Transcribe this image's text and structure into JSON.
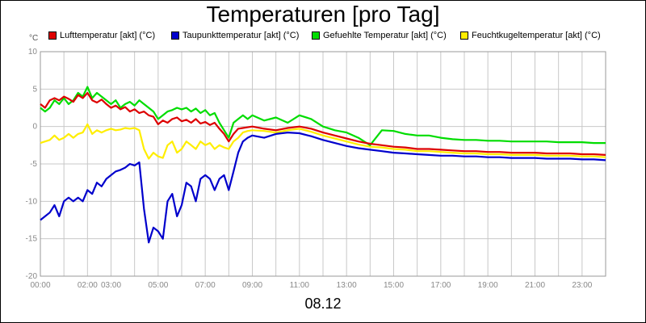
{
  "chart_data": {
    "type": "line",
    "title": "Temperaturen [pro Tag]",
    "xlabel": "08.12",
    "ylabel": "°C",
    "ylim": [
      -20,
      10
    ],
    "xlim": [
      0,
      24
    ],
    "yticks": [
      10,
      5,
      0,
      -5,
      -10,
      -15,
      -20
    ],
    "ytick_labels": [
      "10",
      "5",
      "0",
      "-5",
      "-10",
      "-15",
      "-20"
    ],
    "xticks": [
      0,
      2,
      3,
      5,
      7,
      9,
      11,
      13,
      15,
      17,
      19,
      21,
      23
    ],
    "xtick_labels": [
      "00:00",
      "02:00",
      "03:00",
      "05:00",
      "07:00",
      "09:00",
      "11:00",
      "13:00",
      "15:00",
      "17:00",
      "19:00",
      "21:00",
      "23:00"
    ],
    "grid": true,
    "legend_position": "top",
    "series": [
      {
        "name": "Lufttemperatur [akt] (°C)",
        "color": "#dd0000",
        "x": [
          0,
          0.2,
          0.4,
          0.6,
          0.8,
          1.0,
          1.2,
          1.4,
          1.6,
          1.8,
          2.0,
          2.2,
          2.4,
          2.6,
          2.8,
          3.0,
          3.2,
          3.4,
          3.6,
          3.8,
          4.0,
          4.2,
          4.4,
          4.6,
          4.8,
          5.0,
          5.2,
          5.4,
          5.6,
          5.8,
          6.0,
          6.2,
          6.4,
          6.6,
          6.8,
          7.0,
          7.2,
          7.4,
          7.6,
          7.8,
          8.0,
          8.2,
          8.4,
          8.6,
          8.8,
          9.0,
          9.5,
          10.0,
          10.5,
          11.0,
          11.5,
          12.0,
          12.5,
          13.0,
          13.5,
          14.0,
          14.5,
          15.0,
          15.5,
          16.0,
          16.5,
          17.0,
          17.5,
          18.0,
          18.5,
          19.0,
          19.5,
          20.0,
          20.5,
          21.0,
          21.5,
          22.0,
          22.5,
          23.0,
          23.5,
          24.0
        ],
        "values": [
          3.0,
          2.5,
          3.5,
          3.8,
          3.5,
          4.0,
          3.7,
          3.3,
          4.2,
          3.8,
          4.5,
          3.5,
          3.2,
          3.6,
          3.0,
          2.5,
          2.8,
          2.3,
          2.6,
          2.0,
          2.3,
          1.8,
          2.0,
          1.5,
          1.3,
          0.3,
          0.8,
          0.5,
          1.0,
          1.2,
          0.7,
          0.9,
          0.5,
          1.0,
          0.4,
          0.6,
          0.2,
          0.5,
          -0.3,
          -1.0,
          -2.0,
          -1.0,
          -0.3,
          -0.2,
          -0.1,
          0.0,
          -0.3,
          -0.5,
          -0.2,
          0.0,
          -0.3,
          -0.8,
          -1.2,
          -1.6,
          -2.0,
          -2.3,
          -2.5,
          -2.7,
          -2.8,
          -3.0,
          -3.0,
          -3.1,
          -3.2,
          -3.3,
          -3.3,
          -3.4,
          -3.4,
          -3.5,
          -3.5,
          -3.5,
          -3.6,
          -3.6,
          -3.6,
          -3.7,
          -3.7,
          -3.8
        ]
      },
      {
        "name": "Taupunkttemperatur [akt] (°C)",
        "color": "#0000cc",
        "x": [
          0,
          0.2,
          0.4,
          0.6,
          0.8,
          1.0,
          1.2,
          1.4,
          1.6,
          1.8,
          2.0,
          2.2,
          2.4,
          2.6,
          2.8,
          3.0,
          3.2,
          3.4,
          3.6,
          3.8,
          4.0,
          4.2,
          4.4,
          4.6,
          4.8,
          5.0,
          5.2,
          5.4,
          5.6,
          5.8,
          6.0,
          6.2,
          6.4,
          6.6,
          6.8,
          7.0,
          7.2,
          7.4,
          7.6,
          7.8,
          8.0,
          8.2,
          8.4,
          8.6,
          8.8,
          9.0,
          9.5,
          10.0,
          10.5,
          11.0,
          11.5,
          12.0,
          12.5,
          13.0,
          13.5,
          14.0,
          14.5,
          15.0,
          15.5,
          16.0,
          16.5,
          17.0,
          17.5,
          18.0,
          18.5,
          19.0,
          19.5,
          20.0,
          20.5,
          21.0,
          21.5,
          22.0,
          22.5,
          23.0,
          23.5,
          24.0
        ],
        "values": [
          -12.5,
          -12.0,
          -11.5,
          -10.5,
          -12.0,
          -10.0,
          -9.5,
          -10.0,
          -9.5,
          -10.0,
          -8.5,
          -9.0,
          -7.5,
          -8.0,
          -7.0,
          -6.5,
          -6.0,
          -5.8,
          -5.5,
          -5.0,
          -5.2,
          -4.8,
          -11.0,
          -15.5,
          -13.5,
          -14.0,
          -15.0,
          -10.0,
          -9.0,
          -12.0,
          -10.5,
          -7.5,
          -8.0,
          -10.0,
          -7.0,
          -6.5,
          -7.0,
          -8.5,
          -7.0,
          -6.5,
          -8.5,
          -6.0,
          -3.5,
          -2.0,
          -1.5,
          -1.2,
          -1.5,
          -1.0,
          -0.8,
          -0.9,
          -1.3,
          -1.8,
          -2.2,
          -2.6,
          -2.9,
          -3.1,
          -3.3,
          -3.5,
          -3.6,
          -3.7,
          -3.8,
          -3.9,
          -3.9,
          -4.0,
          -4.0,
          -4.1,
          -4.1,
          -4.2,
          -4.2,
          -4.2,
          -4.3,
          -4.3,
          -4.3,
          -4.4,
          -4.4,
          -4.5
        ]
      },
      {
        "name": "Gefuehlte Temperatur [akt] (°C)",
        "color": "#00dd00",
        "x": [
          0,
          0.2,
          0.4,
          0.6,
          0.8,
          1.0,
          1.2,
          1.4,
          1.6,
          1.8,
          2.0,
          2.2,
          2.4,
          2.6,
          2.8,
          3.0,
          3.2,
          3.4,
          3.6,
          3.8,
          4.0,
          4.2,
          4.4,
          4.6,
          4.8,
          5.0,
          5.2,
          5.4,
          5.6,
          5.8,
          6.0,
          6.2,
          6.4,
          6.6,
          6.8,
          7.0,
          7.2,
          7.4,
          7.6,
          7.8,
          8.0,
          8.2,
          8.4,
          8.6,
          8.8,
          9.0,
          9.5,
          10.0,
          10.5,
          11.0,
          11.5,
          12.0,
          12.5,
          13.0,
          13.5,
          14.0,
          14.5,
          15.0,
          15.5,
          16.0,
          16.5,
          17.0,
          17.5,
          18.0,
          18.5,
          19.0,
          19.5,
          20.0,
          20.5,
          21.0,
          21.5,
          22.0,
          22.5,
          23.0,
          23.5,
          24.0
        ],
        "values": [
          2.5,
          2.0,
          2.5,
          3.5,
          3.0,
          3.8,
          3.0,
          3.5,
          4.5,
          4.0,
          5.3,
          3.8,
          4.5,
          4.0,
          3.5,
          3.0,
          3.5,
          2.5,
          3.0,
          3.3,
          2.8,
          3.5,
          3.0,
          2.5,
          2.0,
          1.0,
          1.5,
          2.0,
          2.2,
          2.5,
          2.3,
          2.5,
          2.0,
          2.4,
          1.8,
          2.2,
          1.5,
          1.8,
          0.5,
          -0.5,
          -1.5,
          0.5,
          1.0,
          1.5,
          1.0,
          1.5,
          0.8,
          1.2,
          0.5,
          1.5,
          1.0,
          0.0,
          -0.5,
          -0.8,
          -1.5,
          -2.5,
          -0.5,
          -0.6,
          -1.0,
          -1.2,
          -1.2,
          -1.5,
          -1.7,
          -1.8,
          -1.8,
          -1.9,
          -1.9,
          -2.0,
          -2.0,
          -2.0,
          -2.0,
          -2.1,
          -2.1,
          -2.1,
          -2.2,
          -2.2
        ]
      },
      {
        "name": "Feuchtkugeltemperatur [akt] (°C)",
        "color": "#ffee00",
        "x": [
          0,
          0.2,
          0.4,
          0.6,
          0.8,
          1.0,
          1.2,
          1.4,
          1.6,
          1.8,
          2.0,
          2.2,
          2.4,
          2.6,
          2.8,
          3.0,
          3.2,
          3.4,
          3.6,
          3.8,
          4.0,
          4.2,
          4.4,
          4.6,
          4.8,
          5.0,
          5.2,
          5.4,
          5.6,
          5.8,
          6.0,
          6.2,
          6.4,
          6.6,
          6.8,
          7.0,
          7.2,
          7.4,
          7.6,
          7.8,
          8.0,
          8.2,
          8.4,
          8.6,
          8.8,
          9.0,
          9.5,
          10.0,
          10.5,
          11.0,
          11.5,
          12.0,
          12.5,
          13.0,
          13.5,
          14.0,
          14.5,
          15.0,
          15.5,
          16.0,
          16.5,
          17.0,
          17.5,
          18.0,
          18.5,
          19.0,
          19.5,
          20.0,
          20.5,
          21.0,
          21.5,
          22.0,
          22.5,
          23.0,
          23.5,
          24.0
        ],
        "values": [
          -2.2,
          -2.0,
          -1.8,
          -1.2,
          -1.8,
          -1.5,
          -1.0,
          -1.5,
          -1.0,
          -0.8,
          0.3,
          -1.0,
          -0.5,
          -0.8,
          -0.5,
          -0.3,
          -0.5,
          -0.4,
          -0.2,
          -0.3,
          -0.2,
          -0.5,
          -3.0,
          -4.3,
          -3.5,
          -4.0,
          -4.2,
          -2.5,
          -2.0,
          -3.5,
          -3.0,
          -2.0,
          -2.5,
          -3.0,
          -2.0,
          -2.5,
          -2.2,
          -3.0,
          -2.5,
          -2.8,
          -3.0,
          -2.0,
          -1.5,
          -0.8,
          -0.6,
          -0.5,
          -0.6,
          -0.8,
          -0.5,
          -0.3,
          -0.7,
          -1.2,
          -1.6,
          -2.0,
          -2.4,
          -2.7,
          -2.8,
          -3.0,
          -3.1,
          -3.3,
          -3.3,
          -3.4,
          -3.5,
          -3.6,
          -3.6,
          -3.7,
          -3.7,
          -3.8,
          -3.8,
          -3.8,
          -3.9,
          -3.9,
          -3.9,
          -4.0,
          -4.0,
          -4.1
        ]
      }
    ]
  }
}
